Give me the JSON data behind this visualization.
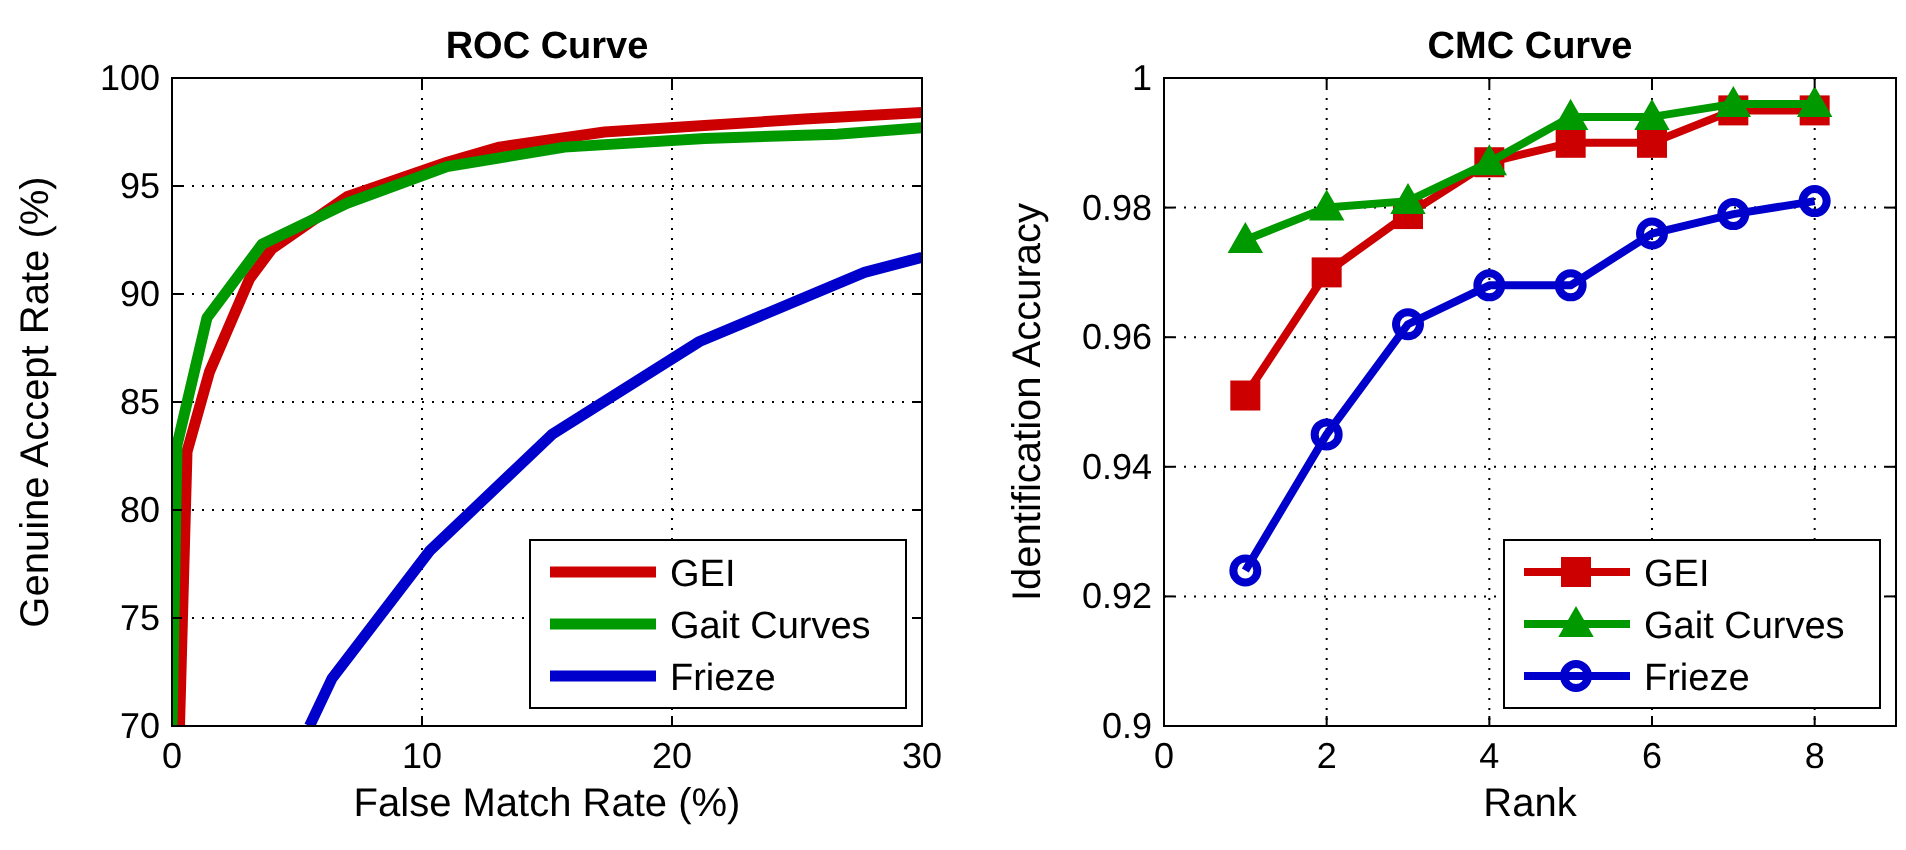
{
  "chart_data": [
    {
      "type": "line",
      "title": "ROC Curve",
      "xlabel": "False Match Rate (%)",
      "ylabel": "Genuine Accept Rate (%)",
      "xlim": [
        0,
        30
      ],
      "xticks": [
        0,
        10,
        20,
        30
      ],
      "ylim": [
        70,
        100
      ],
      "yticks": [
        70,
        75,
        80,
        85,
        90,
        95,
        100
      ],
      "grid": true,
      "legend": "bottom right",
      "line_style": "solid",
      "series": [
        {
          "name": "GEI",
          "color": "#cc0000",
          "x": [
            0.3,
            0.6,
            1.5,
            3.1,
            4.0,
            7.0,
            11.0,
            13.1,
            17.3,
            21.3,
            25.3,
            30
          ],
          "values": [
            70,
            82.7,
            86.4,
            90.7,
            92.1,
            94.5,
            96.1,
            96.8,
            97.5,
            97.8,
            98.1,
            98.4
          ]
        },
        {
          "name": "Gait Curves",
          "color": "#009900",
          "x": [
            0,
            0.2,
            1.4,
            3.6,
            7.0,
            11.0,
            15.7,
            21.3,
            26.6,
            30
          ],
          "values": [
            70,
            83,
            88.9,
            92.3,
            94.2,
            95.9,
            96.8,
            97.2,
            97.4,
            97.7
          ]
        },
        {
          "name": "Frieze",
          "color": "#0000cc",
          "x": [
            5.5,
            6.4,
            10.3,
            15.2,
            21.1,
            27.7,
            30
          ],
          "values": [
            70,
            72.2,
            78.1,
            83.5,
            87.8,
            91.0,
            91.7
          ]
        }
      ]
    },
    {
      "type": "line",
      "title": "CMC Curve",
      "xlabel": "Rank",
      "ylabel": "Identification Accuracy",
      "xlim": [
        0,
        9
      ],
      "xticks": [
        0,
        2,
        4,
        6,
        8
      ],
      "ylim": [
        0.9,
        1
      ],
      "yticks": [
        {
          "value": 0.9,
          "label": "0.9"
        },
        {
          "value": 0.92,
          "label": "0.92"
        },
        {
          "value": 0.94,
          "label": "0.94"
        },
        {
          "value": 0.96,
          "label": "0.96"
        },
        {
          "value": 0.98,
          "label": "0.98"
        },
        {
          "value": 1,
          "label": "1"
        }
      ],
      "grid": true,
      "legend": "bottom right",
      "line_style": "solid",
      "series": [
        {
          "name": "GEI",
          "color": "#cc0000",
          "marker": "square",
          "x": [
            1,
            2,
            3,
            4,
            5,
            6,
            7,
            8
          ],
          "values": [
            0.951,
            0.97,
            0.979,
            0.987,
            0.99,
            0.99,
            0.995,
            0.995
          ]
        },
        {
          "name": "Gait Curves",
          "color": "#009900",
          "marker": "triangle",
          "x": [
            1,
            2,
            3,
            4,
            5,
            6,
            7,
            8
          ],
          "values": [
            0.975,
            0.98,
            0.981,
            0.987,
            0.994,
            0.994,
            0.996,
            0.996
          ]
        },
        {
          "name": "Frieze",
          "color": "#0000cc",
          "marker": "circle",
          "x": [
            1,
            2,
            3,
            4,
            5,
            6,
            7,
            8
          ],
          "values": [
            0.924,
            0.945,
            0.962,
            0.968,
            0.968,
            0.976,
            0.979,
            0.981
          ]
        }
      ]
    }
  ]
}
